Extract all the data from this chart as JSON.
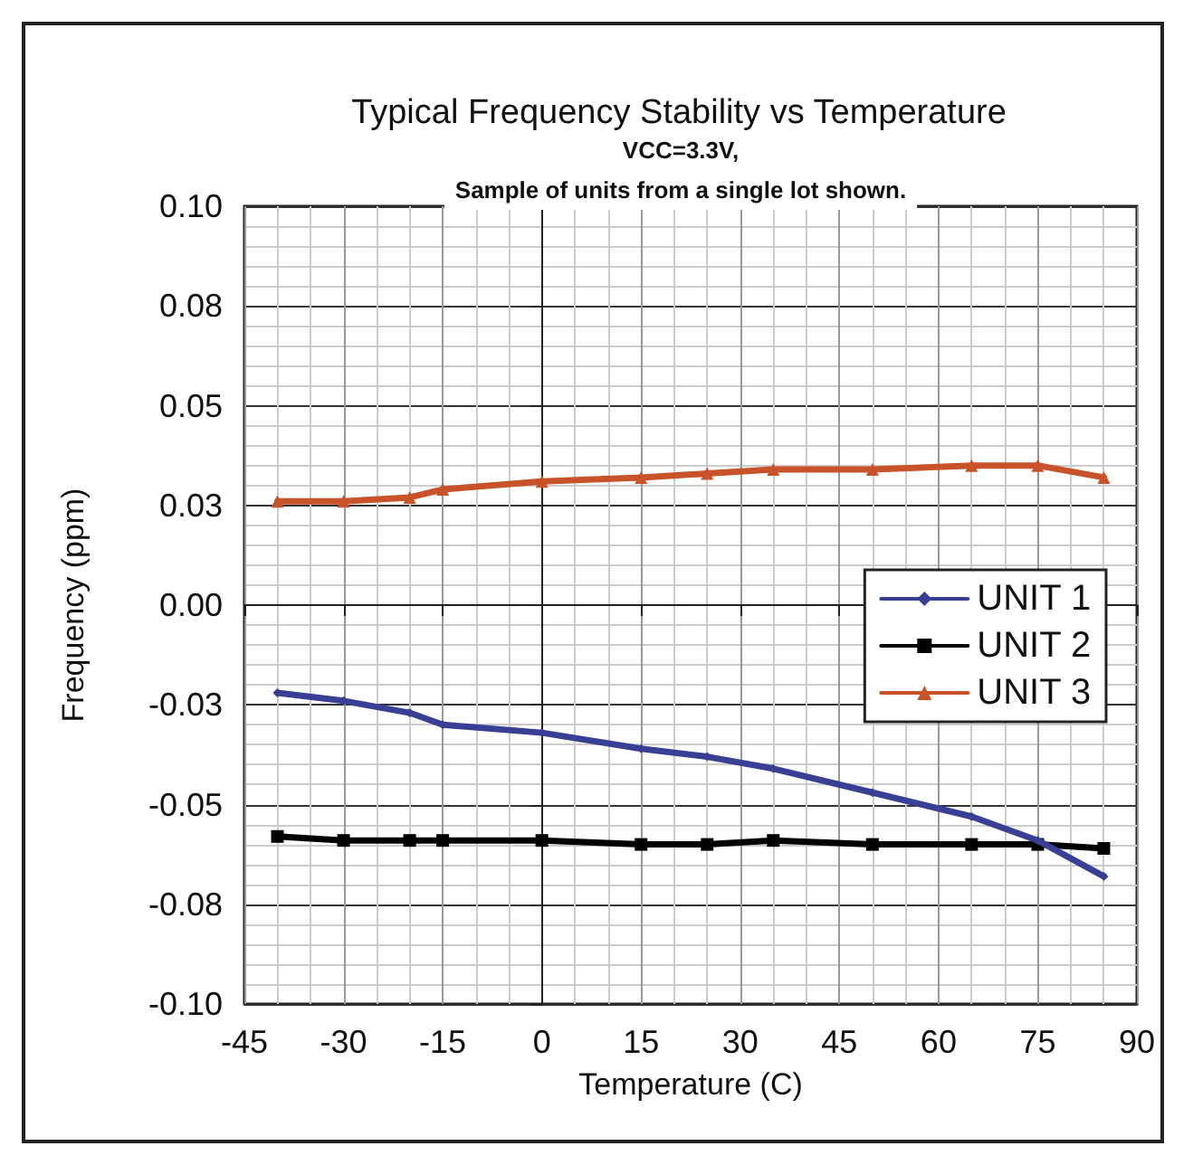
{
  "chart_data": {
    "type": "line",
    "title": "Typical Frequency Stability vs Temperature",
    "subtitle": "VCC=3.3V,\nSample of units from a single lot shown.",
    "xlabel": "Temperature (C)",
    "ylabel": "Frequency (ppm)",
    "x": [
      -40,
      -30,
      -20,
      -15,
      0,
      15,
      25,
      35,
      50,
      65,
      75,
      85
    ],
    "series": [
      {
        "name": "UNIT 1",
        "color": "#3a3f96",
        "marker": "diamond",
        "values": [
          -0.022,
          -0.024,
          -0.027,
          -0.03,
          -0.032,
          -0.036,
          -0.038,
          -0.041,
          -0.047,
          -0.053,
          -0.059,
          -0.068
        ]
      },
      {
        "name": "UNIT 2",
        "color": "#000000",
        "marker": "square",
        "values": [
          -0.058,
          -0.059,
          -0.059,
          -0.059,
          -0.059,
          -0.06,
          -0.06,
          -0.059,
          -0.06,
          -0.06,
          -0.06,
          -0.061
        ]
      },
      {
        "name": "UNIT 3",
        "color": "#c8522a",
        "marker": "triangle",
        "values": [
          0.026,
          0.026,
          0.027,
          0.029,
          0.031,
          0.032,
          0.033,
          0.034,
          0.034,
          0.035,
          0.035,
          0.032
        ]
      }
    ],
    "xlim": [
      -45,
      90
    ],
    "xticks": [
      -45,
      -30,
      -15,
      0,
      15,
      30,
      45,
      60,
      75,
      90
    ],
    "ylim": [
      -0.1,
      0.1
    ],
    "yticks": [
      {
        "value": -0.1,
        "label": "-0.10"
      },
      {
        "value": -0.075,
        "label": "-0.08"
      },
      {
        "value": -0.05,
        "label": "-0.05"
      },
      {
        "value": -0.025,
        "label": "-0.03"
      },
      {
        "value": 0,
        "label": "0.00"
      },
      {
        "value": 0.025,
        "label": "0.03"
      },
      {
        "value": 0.05,
        "label": "0.05"
      },
      {
        "value": 0.075,
        "label": "0.08"
      },
      {
        "value": 0.1,
        "label": "0.10"
      }
    ],
    "grid": true,
    "legend": "right",
    "line_style": "solid"
  }
}
